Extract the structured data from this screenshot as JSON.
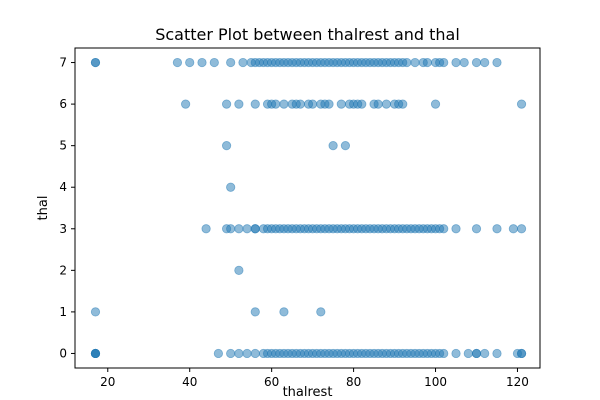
{
  "chart_data": {
    "type": "scatter",
    "title": "Scatter Plot between thalrest and thal",
    "xlabel": "thalrest",
    "ylabel": "thal",
    "xlim": [
      12,
      125.5
    ],
    "ylim": [
      -0.35,
      7.35
    ],
    "xticks": [
      20,
      40,
      60,
      80,
      100,
      120
    ],
    "yticks": [
      0,
      1,
      2,
      3,
      4,
      5,
      6,
      7
    ],
    "grid": false,
    "legend": "none",
    "marker_color": "#1f77b4",
    "marker_alpha": 0.5,
    "points": [
      [
        17,
        0
      ],
      [
        17,
        0
      ],
      [
        17,
        0
      ],
      [
        17,
        0
      ],
      [
        47,
        0
      ],
      [
        50,
        0
      ],
      [
        52,
        0
      ],
      [
        54,
        0
      ],
      [
        56,
        0
      ],
      [
        58,
        0
      ],
      [
        59,
        0
      ],
      [
        60,
        0
      ],
      [
        61,
        0
      ],
      [
        62,
        0
      ],
      [
        63,
        0
      ],
      [
        64,
        0
      ],
      [
        65,
        0
      ],
      [
        66,
        0
      ],
      [
        67,
        0
      ],
      [
        68,
        0
      ],
      [
        69,
        0
      ],
      [
        70,
        0
      ],
      [
        71,
        0
      ],
      [
        72,
        0
      ],
      [
        73,
        0
      ],
      [
        74,
        0
      ],
      [
        75,
        0
      ],
      [
        76,
        0
      ],
      [
        77,
        0
      ],
      [
        78,
        0
      ],
      [
        79,
        0
      ],
      [
        80,
        0
      ],
      [
        81,
        0
      ],
      [
        82,
        0
      ],
      [
        83,
        0
      ],
      [
        84,
        0
      ],
      [
        85,
        0
      ],
      [
        86,
        0
      ],
      [
        87,
        0
      ],
      [
        88,
        0
      ],
      [
        89,
        0
      ],
      [
        90,
        0
      ],
      [
        91,
        0
      ],
      [
        92,
        0
      ],
      [
        93,
        0
      ],
      [
        94,
        0
      ],
      [
        95,
        0
      ],
      [
        96,
        0
      ],
      [
        97,
        0
      ],
      [
        98,
        0
      ],
      [
        99,
        0
      ],
      [
        100,
        0
      ],
      [
        101,
        0
      ],
      [
        102,
        0
      ],
      [
        105,
        0
      ],
      [
        108,
        0
      ],
      [
        110,
        0
      ],
      [
        110,
        0
      ],
      [
        112,
        0
      ],
      [
        115,
        0
      ],
      [
        120,
        0
      ],
      [
        121,
        0
      ],
      [
        121,
        0
      ],
      [
        17,
        1
      ],
      [
        56,
        1
      ],
      [
        63,
        1
      ],
      [
        72,
        1
      ],
      [
        52,
        2
      ],
      [
        44,
        3
      ],
      [
        49,
        3
      ],
      [
        50,
        3
      ],
      [
        52,
        3
      ],
      [
        54,
        3
      ],
      [
        56,
        3
      ],
      [
        56,
        3
      ],
      [
        58,
        3
      ],
      [
        59,
        3
      ],
      [
        60,
        3
      ],
      [
        61,
        3
      ],
      [
        62,
        3
      ],
      [
        63,
        3
      ],
      [
        64,
        3
      ],
      [
        65,
        3
      ],
      [
        66,
        3
      ],
      [
        67,
        3
      ],
      [
        68,
        3
      ],
      [
        69,
        3
      ],
      [
        70,
        3
      ],
      [
        71,
        3
      ],
      [
        72,
        3
      ],
      [
        73,
        3
      ],
      [
        74,
        3
      ],
      [
        75,
        3
      ],
      [
        76,
        3
      ],
      [
        77,
        3
      ],
      [
        78,
        3
      ],
      [
        79,
        3
      ],
      [
        80,
        3
      ],
      [
        81,
        3
      ],
      [
        82,
        3
      ],
      [
        83,
        3
      ],
      [
        84,
        3
      ],
      [
        85,
        3
      ],
      [
        86,
        3
      ],
      [
        87,
        3
      ],
      [
        88,
        3
      ],
      [
        89,
        3
      ],
      [
        90,
        3
      ],
      [
        91,
        3
      ],
      [
        92,
        3
      ],
      [
        93,
        3
      ],
      [
        94,
        3
      ],
      [
        95,
        3
      ],
      [
        96,
        3
      ],
      [
        97,
        3
      ],
      [
        98,
        3
      ],
      [
        99,
        3
      ],
      [
        100,
        3
      ],
      [
        101,
        3
      ],
      [
        102,
        3
      ],
      [
        105,
        3
      ],
      [
        110,
        3
      ],
      [
        115,
        3
      ],
      [
        119,
        3
      ],
      [
        121,
        3
      ],
      [
        50,
        4
      ],
      [
        49,
        5
      ],
      [
        75,
        5
      ],
      [
        78,
        5
      ],
      [
        39,
        6
      ],
      [
        49,
        6
      ],
      [
        52,
        6
      ],
      [
        56,
        6
      ],
      [
        59,
        6
      ],
      [
        60,
        6
      ],
      [
        61,
        6
      ],
      [
        63,
        6
      ],
      [
        65,
        6
      ],
      [
        66,
        6
      ],
      [
        67,
        6
      ],
      [
        69,
        6
      ],
      [
        70,
        6
      ],
      [
        72,
        6
      ],
      [
        73,
        6
      ],
      [
        74,
        6
      ],
      [
        77,
        6
      ],
      [
        79,
        6
      ],
      [
        80,
        6
      ],
      [
        81,
        6
      ],
      [
        82,
        6
      ],
      [
        85,
        6
      ],
      [
        86,
        6
      ],
      [
        88,
        6
      ],
      [
        90,
        6
      ],
      [
        91,
        6
      ],
      [
        92,
        6
      ],
      [
        100,
        6
      ],
      [
        121,
        6
      ],
      [
        17,
        7
      ],
      [
        17,
        7
      ],
      [
        37,
        7
      ],
      [
        40,
        7
      ],
      [
        43,
        7
      ],
      [
        46,
        7
      ],
      [
        50,
        7
      ],
      [
        53,
        7
      ],
      [
        55,
        7
      ],
      [
        56,
        7
      ],
      [
        57,
        7
      ],
      [
        58,
        7
      ],
      [
        59,
        7
      ],
      [
        60,
        7
      ],
      [
        61,
        7
      ],
      [
        62,
        7
      ],
      [
        63,
        7
      ],
      [
        64,
        7
      ],
      [
        65,
        7
      ],
      [
        66,
        7
      ],
      [
        67,
        7
      ],
      [
        68,
        7
      ],
      [
        69,
        7
      ],
      [
        70,
        7
      ],
      [
        71,
        7
      ],
      [
        72,
        7
      ],
      [
        73,
        7
      ],
      [
        74,
        7
      ],
      [
        75,
        7
      ],
      [
        76,
        7
      ],
      [
        77,
        7
      ],
      [
        78,
        7
      ],
      [
        79,
        7
      ],
      [
        80,
        7
      ],
      [
        81,
        7
      ],
      [
        82,
        7
      ],
      [
        83,
        7
      ],
      [
        84,
        7
      ],
      [
        85,
        7
      ],
      [
        86,
        7
      ],
      [
        87,
        7
      ],
      [
        88,
        7
      ],
      [
        89,
        7
      ],
      [
        90,
        7
      ],
      [
        91,
        7
      ],
      [
        92,
        7
      ],
      [
        93,
        7
      ],
      [
        95,
        7
      ],
      [
        97,
        7
      ],
      [
        98,
        7
      ],
      [
        100,
        7
      ],
      [
        101,
        7
      ],
      [
        102,
        7
      ],
      [
        105,
        7
      ],
      [
        107,
        7
      ],
      [
        110,
        7
      ],
      [
        112,
        7
      ],
      [
        115,
        7
      ]
    ]
  }
}
